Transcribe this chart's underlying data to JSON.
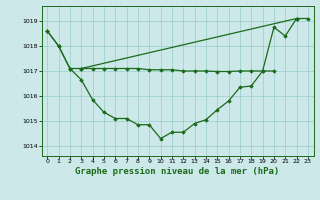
{
  "background_color": "#cce8e8",
  "grid_color": "#99cccc",
  "line_color": "#1a6b1a",
  "marker_style": "D",
  "marker_size": 1.8,
  "line_width": 0.9,
  "title": "Graphe pression niveau de la mer (hPa)",
  "title_fontsize": 6.5,
  "xlim": [
    -0.5,
    23.5
  ],
  "ylim": [
    1013.6,
    1019.6
  ],
  "yticks": [
    1014,
    1015,
    1016,
    1017,
    1018,
    1019
  ],
  "xticks": [
    0,
    1,
    2,
    3,
    4,
    5,
    6,
    7,
    8,
    9,
    10,
    11,
    12,
    13,
    14,
    15,
    16,
    17,
    18,
    19,
    20,
    21,
    22,
    23
  ],
  "series": [
    {
      "x": [
        0,
        1,
        2,
        3,
        4,
        5,
        6,
        7,
        8,
        9,
        10,
        11,
        12,
        13,
        14,
        15,
        16,
        17,
        18,
        19,
        20,
        21,
        22
      ],
      "y": [
        1018.6,
        1018.0,
        1017.1,
        1016.65,
        1015.85,
        1015.35,
        1015.1,
        1015.1,
        1014.85,
        1014.85,
        1014.3,
        1014.55,
        1014.55,
        1014.9,
        1015.05,
        1015.45,
        1015.8,
        1016.35,
        1016.4,
        1017.0,
        1018.75,
        1018.4,
        1019.1
      ]
    },
    {
      "x": [
        0,
        1,
        2,
        3,
        22,
        23
      ],
      "y": [
        1018.6,
        1018.0,
        1017.1,
        1017.1,
        1019.1,
        1019.1
      ]
    },
    {
      "x": [
        3,
        4,
        5,
        6,
        7,
        8,
        9,
        10,
        11,
        12,
        13,
        14,
        15,
        16,
        17,
        18,
        19,
        20
      ],
      "y": [
        1017.1,
        1017.1,
        1017.1,
        1017.1,
        1017.1,
        1017.1,
        1017.05,
        1017.05,
        1017.05,
        1017.0,
        1017.0,
        1017.0,
        1016.98,
        1016.98,
        1017.0,
        1017.0,
        1017.0,
        1017.0
      ]
    }
  ]
}
